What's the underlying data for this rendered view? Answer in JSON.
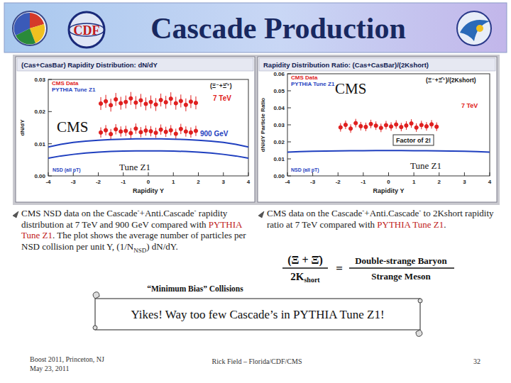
{
  "header": {
    "title": "Cascade Production",
    "logo_text": "CDF"
  },
  "chart_data": [
    {
      "type": "scatter",
      "title": "(Cas+CasBar) Rapidity Distribution: dN/dY",
      "subtitle": "(Ξ⁻+Ξ̄⁺)",
      "xlabel": "Rapidity Y",
      "ylabel": "dN/dY",
      "xlim": [
        -4,
        4
      ],
      "xticks": [
        -4,
        -3,
        -2,
        -1,
        0,
        1,
        2,
        3,
        4
      ],
      "ylim": [
        0,
        0.03
      ],
      "yticks": [
        {
          "value": 0,
          "label": "0.00"
        },
        0.01,
        0.02,
        0.03
      ],
      "grid": false,
      "legend": "upper left",
      "annotations": [
        "7 TeV",
        "900 GeV",
        "NSD (all pT)",
        "CMS",
        "Tune Z1"
      ],
      "series": [
        {
          "name": "CMS Data",
          "type": "scatter",
          "marker": "circle",
          "color": "#e02020",
          "x": [
            -1.9,
            -1.7,
            -1.5,
            -1.3,
            -1.1,
            -0.9,
            -0.7,
            -0.5,
            -0.3,
            -0.1,
            0.1,
            0.3,
            0.5,
            0.7,
            0.9,
            1.1,
            1.3,
            1.5,
            1.7,
            1.9
          ],
          "values": [
            0.0225,
            0.0232,
            0.022,
            0.0238,
            0.0226,
            0.023,
            0.0241,
            0.0228,
            0.0235,
            0.0224,
            0.023,
            0.0222,
            0.0236,
            0.0229,
            0.024,
            0.0226,
            0.0233,
            0.0221,
            0.0231,
            0.0227
          ],
          "errors": [
            0.002,
            0.002,
            0.002,
            0.002,
            0.002,
            0.002,
            0.002,
            0.002,
            0.002,
            0.002,
            0.002,
            0.002,
            0.002,
            0.002,
            0.002,
            0.002,
            0.002,
            0.002,
            0.002,
            0.002
          ]
        },
        {
          "name": "CMS Data",
          "type": "scatter",
          "marker": "circle",
          "color": "#e02020",
          "x": [
            -1.9,
            -1.7,
            -1.5,
            -1.3,
            -1.1,
            -0.9,
            -0.7,
            -0.5,
            -0.3,
            -0.1,
            0.1,
            0.3,
            0.5,
            0.7,
            0.9,
            1.1,
            1.3,
            1.5,
            1.7,
            1.9
          ],
          "values": [
            0.0135,
            0.0142,
            0.013,
            0.0145,
            0.0138,
            0.014,
            0.0133,
            0.0147,
            0.0136,
            0.0141,
            0.0139,
            0.0134,
            0.0144,
            0.0137,
            0.0142,
            0.0131,
            0.0146,
            0.0138,
            0.0135,
            0.014
          ],
          "errors": [
            0.0016,
            0.0016,
            0.0016,
            0.0016,
            0.0016,
            0.0016,
            0.0016,
            0.0016,
            0.0016,
            0.0016,
            0.0016,
            0.0016,
            0.0016,
            0.0016,
            0.0016,
            0.0016,
            0.0016,
            0.0016,
            0.0016,
            0.0016
          ]
        },
        {
          "name": "PYTHIA Tune Z1",
          "type": "line",
          "line_style": "solid",
          "color": "#1f3fbf",
          "x": [
            -4,
            -3.5,
            -3,
            -2.5,
            -2,
            -1.5,
            -1,
            -0.5,
            0,
            0.5,
            1,
            1.5,
            2,
            2.5,
            3,
            3.5,
            4
          ],
          "values": [
            0.009,
            0.0098,
            0.0104,
            0.0108,
            0.0111,
            0.0113,
            0.0114,
            0.0115,
            0.0115,
            0.0115,
            0.0114,
            0.0113,
            0.0111,
            0.0108,
            0.0104,
            0.0098,
            0.009
          ]
        },
        {
          "name": "PYTHIA Tune Z1",
          "type": "line",
          "line_style": "solid",
          "color": "#1f3fbf",
          "x": [
            -4,
            -3.5,
            -3,
            -2.5,
            -2,
            -1.5,
            -1,
            -0.5,
            0,
            0.5,
            1,
            1.5,
            2,
            2.5,
            3,
            3.5,
            4
          ],
          "values": [
            0.0055,
            0.0062,
            0.0067,
            0.0071,
            0.0074,
            0.0076,
            0.0077,
            0.0078,
            0.0078,
            0.0078,
            0.0077,
            0.0076,
            0.0074,
            0.0071,
            0.0067,
            0.0062,
            0.0055
          ]
        }
      ]
    },
    {
      "type": "scatter",
      "title": "Rapidity Distribution Ratio: (Cas+CasBar)/(2Kshort)",
      "subtitle": "(Ξ⁻+Ξ̄⁺)/(2Kshort)",
      "xlabel": "Rapidity Y",
      "ylabel": "dN/dY Particle Ratio",
      "xlim": [
        -4,
        4
      ],
      "xticks": [
        -4,
        -3,
        -2,
        -1,
        0,
        1,
        2,
        3,
        4
      ],
      "ylim": [
        0,
        0.06
      ],
      "yticks": [
        {
          "value": 0,
          "label": "0.00"
        },
        0.01,
        0.02,
        0.03,
        0.04,
        0.05,
        0.06
      ],
      "grid": false,
      "legend": "upper left",
      "annotations": [
        "CMS",
        "7 TeV",
        "Factor of 2!",
        "NSD (all pT)",
        "Tune Z1"
      ],
      "series": [
        {
          "name": "CMS Data",
          "type": "scatter",
          "marker": "circle",
          "color": "#e02020",
          "x": [
            -1.9,
            -1.7,
            -1.5,
            -1.3,
            -1.1,
            -0.9,
            -0.7,
            -0.5,
            -0.3,
            -0.1,
            0.1,
            0.3,
            0.5,
            0.7,
            0.9,
            1.1,
            1.3,
            1.5,
            1.7,
            1.9
          ],
          "values": [
            0.0285,
            0.03,
            0.0278,
            0.031,
            0.0292,
            0.0288,
            0.0305,
            0.0295,
            0.0282,
            0.0298,
            0.029,
            0.0302,
            0.0287,
            0.0296,
            0.0308,
            0.0284,
            0.0299,
            0.0291,
            0.0303,
            0.0289
          ],
          "errors": [
            0.0025,
            0.0025,
            0.0025,
            0.0025,
            0.0025,
            0.0025,
            0.0025,
            0.0025,
            0.0025,
            0.0025,
            0.0025,
            0.0025,
            0.0025,
            0.0025,
            0.0025,
            0.0025,
            0.0025,
            0.0025,
            0.0025,
            0.0025
          ]
        },
        {
          "name": "PYTHIA Tune Z1",
          "type": "line",
          "line_style": "solid",
          "color": "#1f3fbf",
          "x": [
            -4,
            -3.5,
            -3,
            -2.5,
            -2,
            -1.5,
            -1,
            -0.5,
            0,
            0.5,
            1,
            1.5,
            2,
            2.5,
            3,
            3.5,
            4
          ],
          "values": [
            0.014,
            0.0143,
            0.0145,
            0.0146,
            0.0147,
            0.0148,
            0.0148,
            0.0149,
            0.0149,
            0.0149,
            0.0148,
            0.0148,
            0.0147,
            0.0146,
            0.0145,
            0.0143,
            0.014
          ]
        }
      ]
    }
  ],
  "bullets": [
    [
      {
        "text": "CMS NSD data on the Cascade"
      },
      {
        "text": "-",
        "style": "sup"
      },
      {
        "text": "+Anti.Cascade"
      },
      {
        "text": "-",
        "style": "sup"
      },
      {
        "text": " rapidity distribution at 7 TeV and 900 GeV compared with "
      },
      {
        "text": "PYTHIA Tune Z1",
        "color": "#c01818"
      },
      {
        "text": ".  The plot shows the average number of particles per NSD collision per unit Y, (1/N"
      },
      {
        "text": "NSD",
        "style": "sub"
      },
      {
        "text": ") dN/dY."
      }
    ],
    [
      {
        "text": "CMS data on the Cascade"
      },
      {
        "text": "-",
        "style": "sup"
      },
      {
        "text": "+Anti.Cascade"
      },
      {
        "text": "-",
        "style": "sup"
      },
      {
        "text": " to 2Kshort rapidity ratio at 7 TeV compared with "
      },
      {
        "text": "PYTHIA Tune Z1",
        "color": "#c01818"
      },
      {
        "text": "."
      }
    ]
  ],
  "formula": {
    "numerator": "(Ξ + Ξ̄)",
    "denominator": [
      "2K",
      "short"
    ],
    "equals": "=",
    "word_numerator": "Double-strange Baryon",
    "word_denominator": "Strange Meson"
  },
  "caption": "“Minimum Bias” Collisions",
  "banner": "Yikes!  Way too few Cascade’s in PYTHIA Tune Z1!",
  "footer": {
    "event": "Boost 2011, Princeton, NJ",
    "date": "May 23, 2011",
    "author": "Rick Field – Florida/CDF/CMS",
    "page": 32
  }
}
